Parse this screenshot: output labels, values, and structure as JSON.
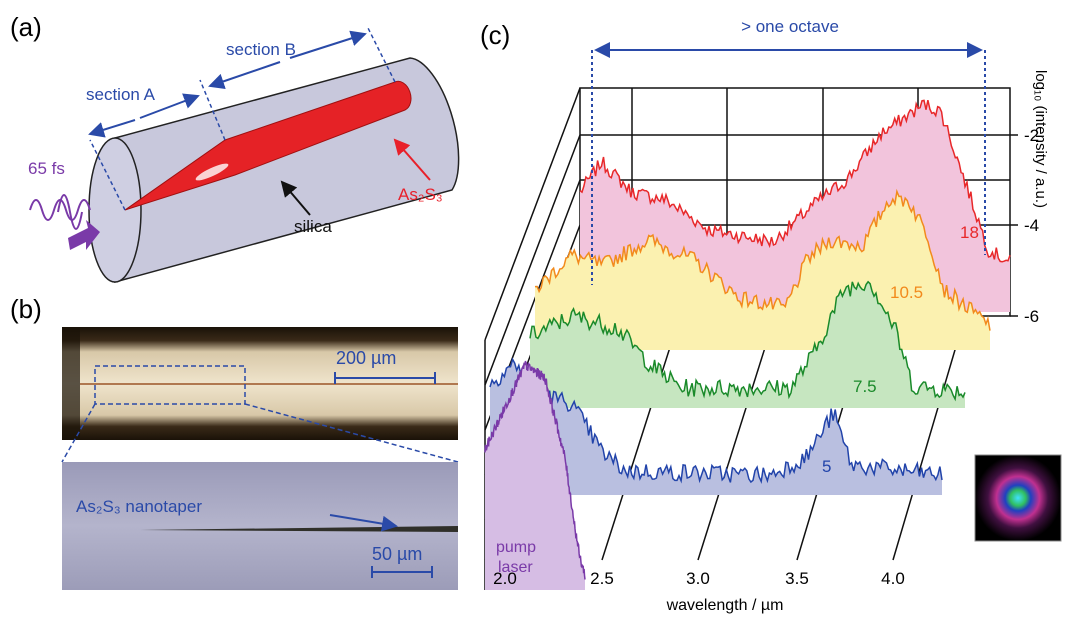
{
  "panel_a": {
    "label": "(a)",
    "section_a": "section A",
    "section_b": "section B",
    "pulse": "65 fs",
    "core_label": "As₂S₃",
    "cladding_label": "silica"
  },
  "panel_b": {
    "label": "(b)",
    "scale_top": "200 µm",
    "taper_label": "As₂S₃ nanotaper",
    "scale_bottom": "50 µm"
  },
  "panel_c": {
    "label": "(c)",
    "span_label": "> one octave",
    "y_axis_title": "log₁₀ (intensity / a.u.)",
    "y_ticks": [
      -2,
      -4,
      -6
    ],
    "x_ticks": [
      "2.0",
      "2.5",
      "3.0",
      "3.5",
      "4.0"
    ],
    "x_axis_title": "wavelength / µm",
    "trace_labels": [
      18,
      10.5,
      7.5,
      5
    ],
    "pump_label": [
      "pump",
      "laser"
    ]
  }
}
